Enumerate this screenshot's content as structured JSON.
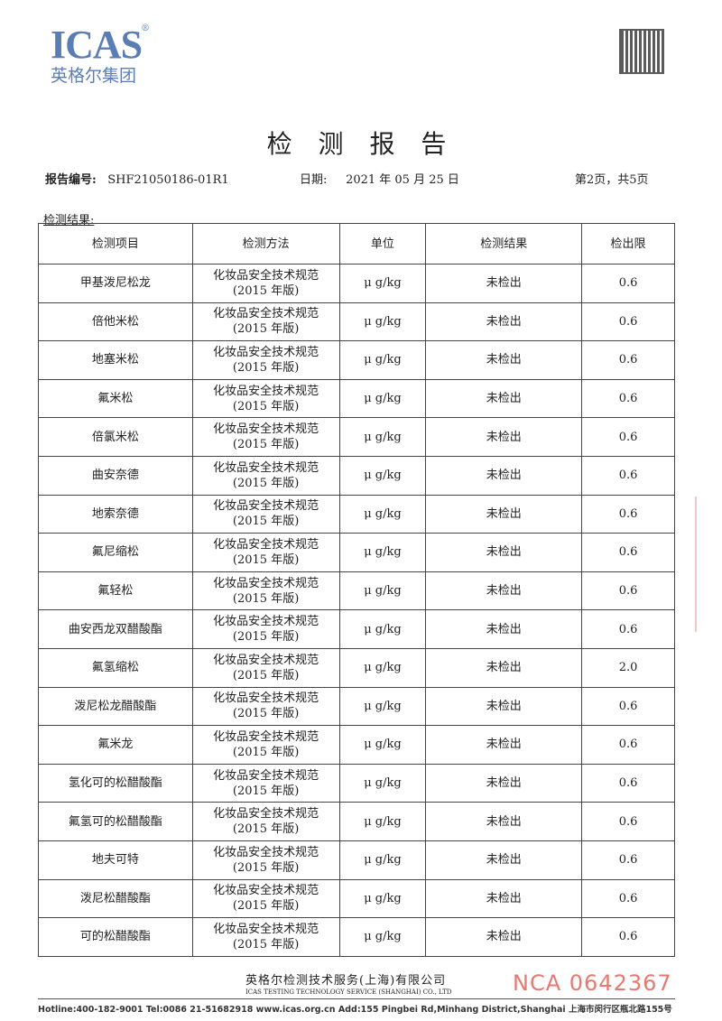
{
  "header": {
    "logo_en": "ICAS",
    "logo_reg": "®",
    "logo_cn": "英格尔集团",
    "title": "检 测 报 告",
    "report_no_label": "报告编号:",
    "report_no": "SHF21050186-01R1",
    "date_label": "日期:",
    "date": "2021 年 05 月 25 日",
    "page": "第2页，共5页"
  },
  "section_label": "检测结果:",
  "table": {
    "headers": [
      "检测项目",
      "检测方法",
      "单位",
      "检测结果",
      "检出限"
    ],
    "rows": [
      [
        "甲基泼尼松龙",
        "化妆品安全技术规范",
        "(2015 年版)",
        "μ g/kg",
        "未检出",
        "0.6"
      ],
      [
        "倍他米松",
        "化妆品安全技术规范",
        "(2015 年版)",
        "μ g/kg",
        "未检出",
        "0.6"
      ],
      [
        "地塞米松",
        "化妆品安全技术规范",
        "(2015 年版)",
        "μ g/kg",
        "未检出",
        "0.6"
      ],
      [
        "氟米松",
        "化妆品安全技术规范",
        "(2015 年版)",
        "μ g/kg",
        "未检出",
        "0.6"
      ],
      [
        "倍氯米松",
        "化妆品安全技术规范",
        "(2015 年版)",
        "μ g/kg",
        "未检出",
        "0.6"
      ],
      [
        "曲安奈德",
        "化妆品安全技术规范",
        "(2015 年版)",
        "μ g/kg",
        "未检出",
        "0.6"
      ],
      [
        "地索奈德",
        "化妆品安全技术规范",
        "(2015 年版)",
        "μ g/kg",
        "未检出",
        "0.6"
      ],
      [
        "氟尼缩松",
        "化妆品安全技术规范",
        "(2015 年版)",
        "μ g/kg",
        "未检出",
        "0.6"
      ],
      [
        "氟轻松",
        "化妆品安全技术规范",
        "(2015 年版)",
        "μ g/kg",
        "未检出",
        "0.6"
      ],
      [
        "曲安西龙双醋酸酯",
        "化妆品安全技术规范",
        "(2015 年版)",
        "μ g/kg",
        "未检出",
        "0.6"
      ],
      [
        "氟氢缩松",
        "化妆品安全技术规范",
        "(2015 年版)",
        "μ g/kg",
        "未检出",
        "2.0"
      ],
      [
        "泼尼松龙醋酸酯",
        "化妆品安全技术规范",
        "(2015 年版)",
        "μ g/kg",
        "未检出",
        "0.6"
      ],
      [
        "氟米龙",
        "化妆品安全技术规范",
        "(2015 年版)",
        "μ g/kg",
        "未检出",
        "0.6"
      ],
      [
        "氢化可的松醋酸酯",
        "化妆品安全技术规范",
        "(2015 年版)",
        "μ g/kg",
        "未检出",
        "0.6"
      ],
      [
        "氟氢可的松醋酸酯",
        "化妆品安全技术规范",
        "(2015 年版)",
        "μ g/kg",
        "未检出",
        "0.6"
      ],
      [
        "地夫可特",
        "化妆品安全技术规范",
        "(2015 年版)",
        "μ g/kg",
        "未检出",
        "0.6"
      ],
      [
        "泼尼松醋酸酯",
        "化妆品安全技术规范",
        "(2015 年版)",
        "μ g/kg",
        "未检出",
        "0.6"
      ],
      [
        "可的松醋酸酯",
        "化妆品安全技术规范",
        "(2015 年版)",
        "μ g/kg",
        "未检出",
        "0.6"
      ]
    ]
  },
  "footer": {
    "company_cn": "英格尔检测技术服务(上海)有限公司",
    "company_en": "ICAS TESTING TECHNOLOGY SERVICE (SHANGHAI) CO., LTD",
    "serial": "NCA 0642367",
    "contact": "Hotline:400-182-9001  Tel:0086 21-51682918  www.icas.org.cn  Add:155 Pingbei Rd,Minhang District,Shanghai 上海市闵行区瓶北路155号"
  },
  "colors": {
    "logo": "#5b7db5",
    "serial": "#e47a72"
  }
}
